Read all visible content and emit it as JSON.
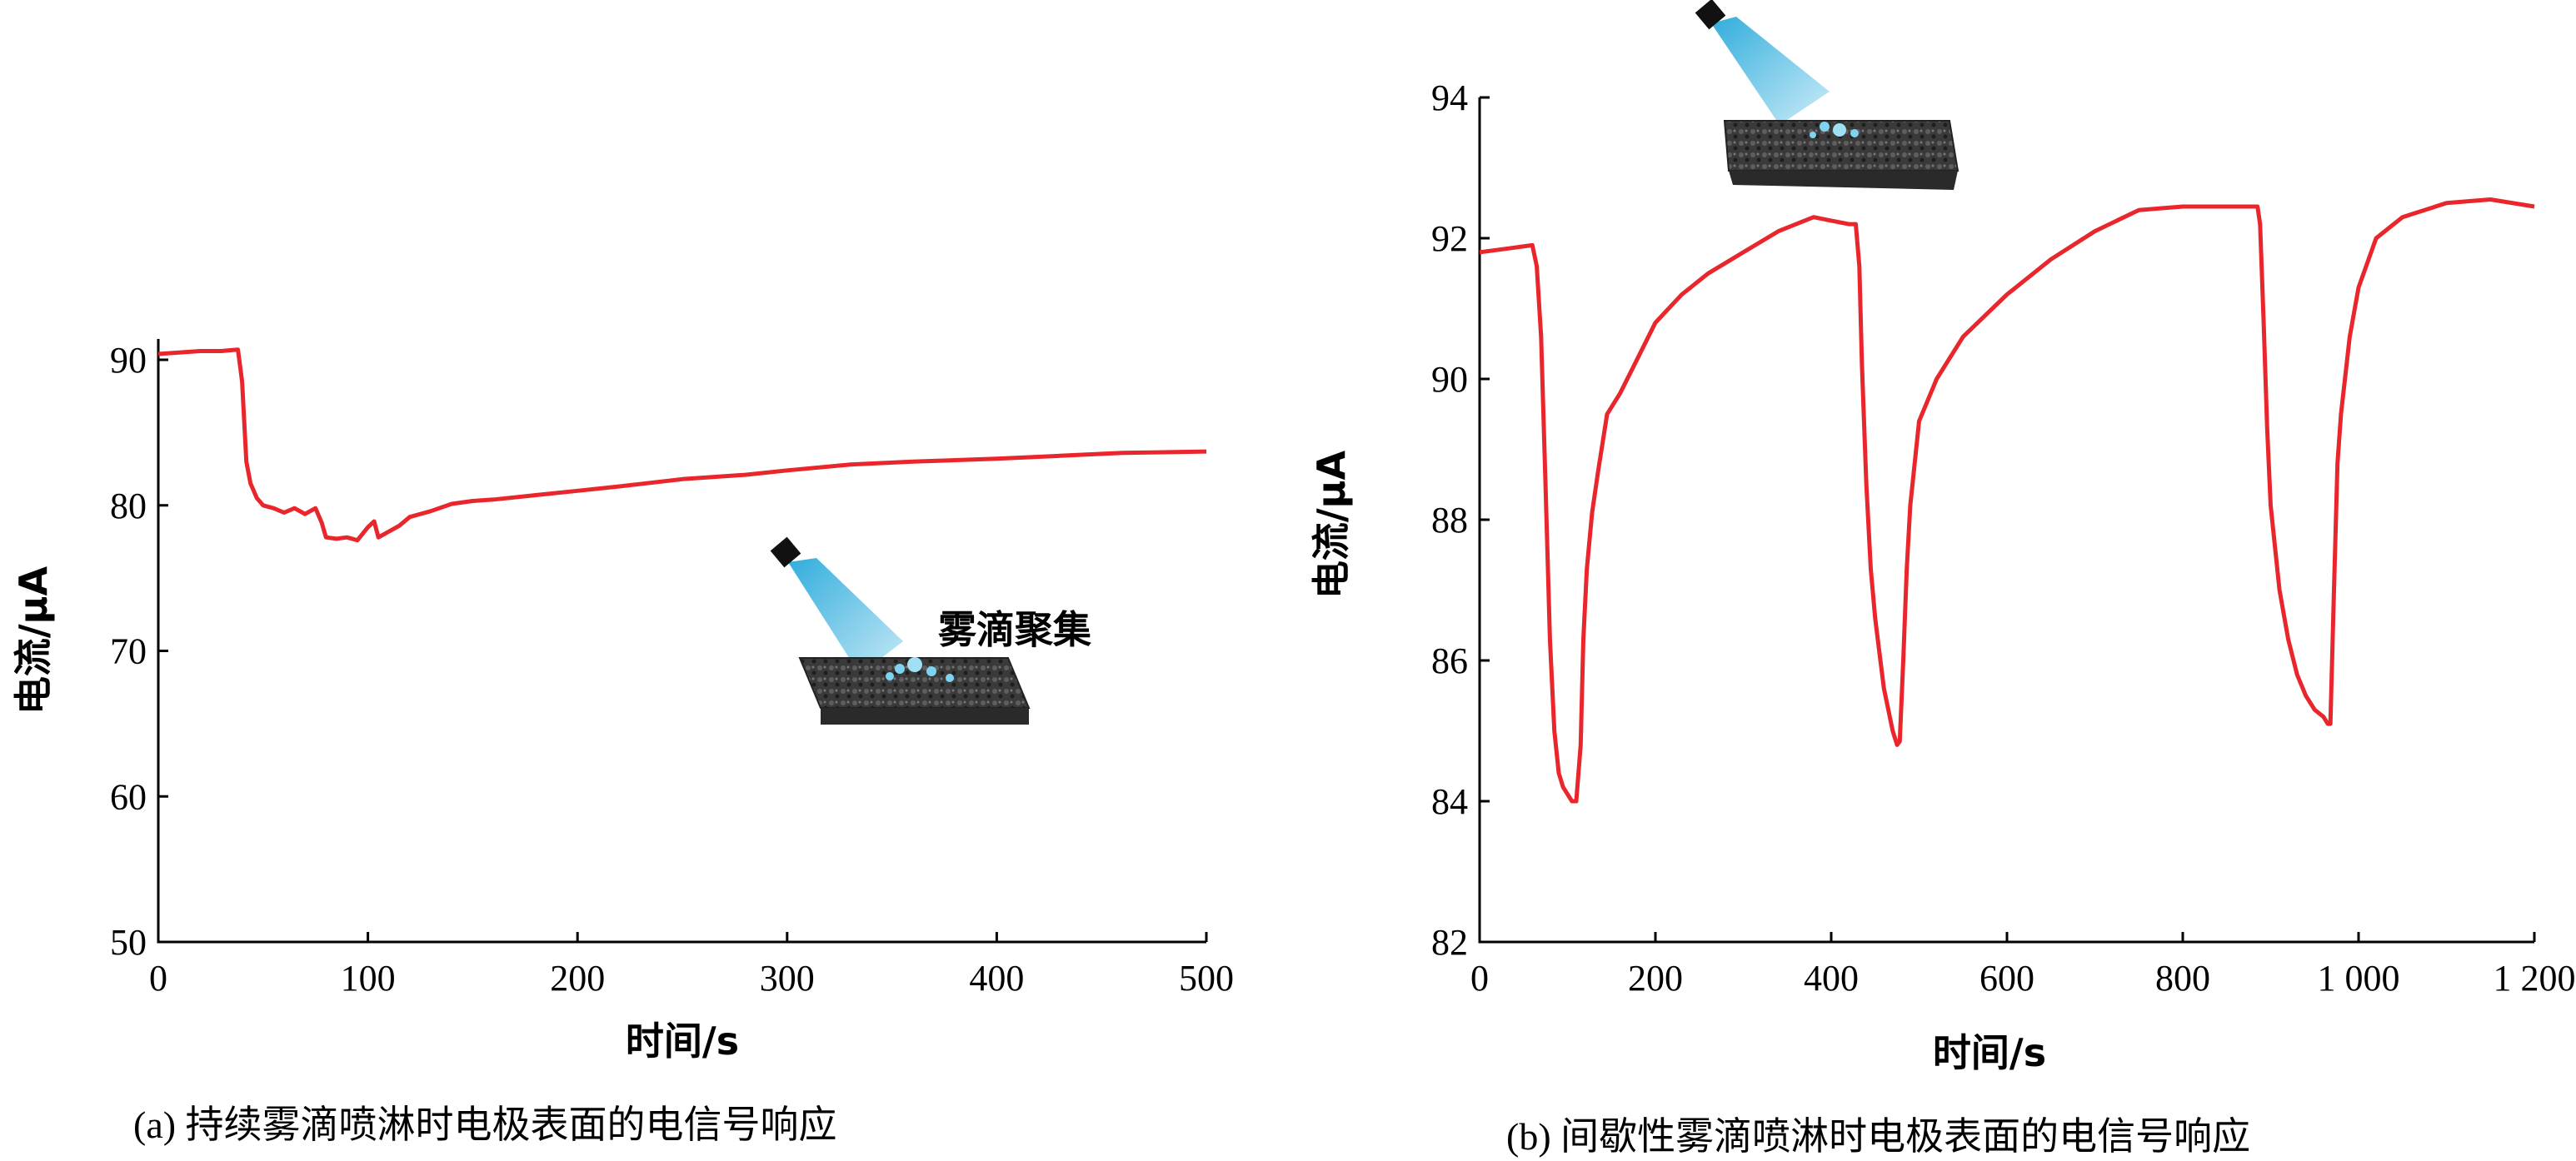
{
  "chart_data": [
    {
      "type": "line",
      "caption": "(a) 持续雾滴喷淋时电极表面的电信号响应",
      "xlabel": "时间/s",
      "ylabel": "电流/μA",
      "xlim": [
        0,
        500
      ],
      "ylim": [
        50,
        92
      ],
      "xticks": [
        0,
        100,
        200,
        300,
        400,
        500
      ],
      "yticks": [
        50,
        60,
        70,
        80,
        90
      ],
      "annotation": "雾滴聚集",
      "grid": false,
      "series": [
        {
          "color": "#e8262b",
          "x": [
            0,
            10,
            20,
            30,
            38,
            40,
            42,
            44,
            47,
            50,
            55,
            60,
            65,
            70,
            75,
            78,
            80,
            85,
            90,
            95,
            100,
            103,
            105,
            110,
            115,
            120,
            130,
            140,
            150,
            160,
            180,
            200,
            220,
            250,
            280,
            300,
            330,
            360,
            400,
            430,
            460,
            500
          ],
          "y": [
            90.4,
            90.5,
            90.6,
            90.6,
            90.7,
            88.5,
            83.0,
            81.5,
            80.5,
            80.0,
            79.8,
            79.5,
            79.8,
            79.4,
            79.8,
            78.8,
            77.8,
            77.7,
            77.8,
            77.6,
            78.5,
            78.9,
            77.8,
            78.2,
            78.6,
            79.2,
            79.6,
            80.1,
            80.3,
            80.4,
            80.7,
            81.0,
            81.3,
            81.8,
            82.1,
            82.4,
            82.8,
            83.0,
            83.2,
            83.4,
            83.6,
            83.7
          ]
        }
      ]
    },
    {
      "type": "line",
      "caption": "(b) 间歇性雾滴喷淋时电极表面的电信号响应",
      "xlabel": "时间/s",
      "ylabel": "电流/μA",
      "xlim": [
        0,
        1200
      ],
      "ylim": [
        82,
        94
      ],
      "xticks": [
        0,
        200,
        400,
        600,
        800,
        1000,
        1200
      ],
      "xtick_labels": [
        "0",
        "200",
        "400",
        "600",
        "800",
        "1 000",
        "1 200"
      ],
      "yticks": [
        82,
        84,
        86,
        88,
        90,
        92,
        94
      ],
      "grid": false,
      "series": [
        {
          "color": "#e8262b",
          "x": [
            0,
            30,
            60,
            65,
            70,
            75,
            80,
            85,
            90,
            95,
            100,
            105,
            110,
            115,
            118,
            122,
            128,
            135,
            145,
            160,
            180,
            200,
            230,
            260,
            300,
            340,
            380,
            400,
            420,
            428,
            432,
            435,
            440,
            445,
            450,
            455,
            460,
            465,
            470,
            475,
            478,
            482,
            486,
            490,
            495,
            500,
            520,
            550,
            600,
            650,
            700,
            750,
            800,
            860,
            885,
            888,
            892,
            896,
            900,
            910,
            920,
            930,
            940,
            950,
            960,
            965,
            968,
            972,
            976,
            980,
            990,
            1000,
            1020,
            1050,
            1100,
            1150,
            1200
          ],
          "y": [
            91.8,
            91.85,
            91.9,
            91.6,
            90.6,
            88.5,
            86.3,
            85.0,
            84.4,
            84.2,
            84.1,
            84.0,
            84.0,
            84.8,
            86.3,
            87.3,
            88.1,
            88.7,
            89.5,
            89.8,
            90.3,
            90.8,
            91.2,
            91.5,
            91.8,
            92.1,
            92.3,
            92.25,
            92.2,
            92.2,
            91.6,
            90.2,
            88.5,
            87.3,
            86.6,
            86.1,
            85.6,
            85.3,
            85.0,
            84.8,
            84.85,
            86.0,
            87.3,
            88.2,
            88.8,
            89.4,
            90.0,
            90.6,
            91.2,
            91.7,
            92.1,
            92.4,
            92.45,
            92.45,
            92.45,
            92.2,
            90.8,
            89.3,
            88.2,
            87.0,
            86.3,
            85.8,
            85.5,
            85.3,
            85.2,
            85.1,
            85.1,
            87.0,
            88.8,
            89.5,
            90.6,
            91.3,
            92.0,
            92.3,
            92.5,
            92.55,
            92.45
          ]
        }
      ]
    }
  ]
}
